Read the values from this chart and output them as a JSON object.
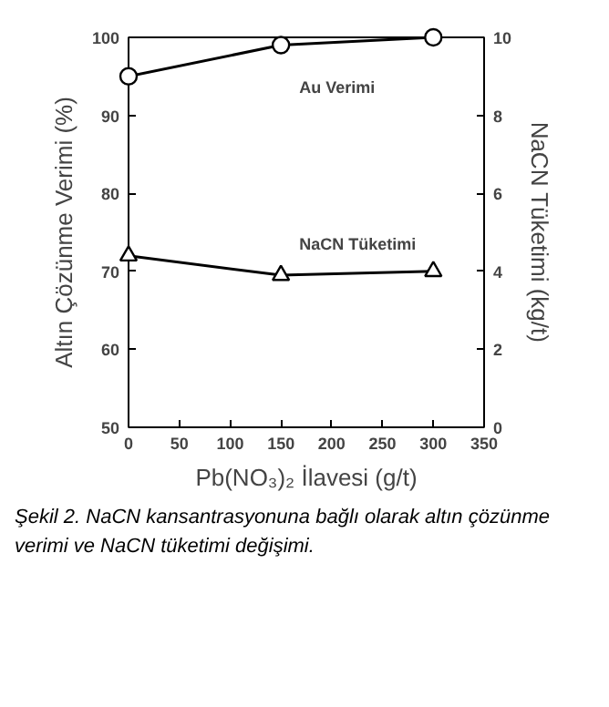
{
  "chart_data": {
    "type": "line",
    "xlabel": "Pb(NO₃)₂ İlavesi (g/t)",
    "ylabel": "Altın Çözünme Verimi (%)",
    "y2label": "NaCN Tüketimi (kg/t)",
    "x": [
      0,
      150,
      300
    ],
    "series": [
      {
        "name": "Au Verimi",
        "color": "#000000",
        "marker": "circle",
        "values": [
          95,
          99,
          100
        ]
      },
      {
        "name": "NaCN Tüketimi",
        "color": "#000000",
        "marker": "triangle",
        "axis": "y2",
        "values": [
          4.4,
          3.9,
          4.0
        ]
      }
    ],
    "xlim": [
      0,
      350
    ],
    "xticks": [
      0,
      50,
      100,
      150,
      200,
      250,
      300,
      350
    ],
    "ylim": [
      50,
      100
    ],
    "yticks": [
      50,
      60,
      70,
      80,
      90,
      100
    ],
    "y2lim": [
      0,
      10
    ],
    "y2ticks": [
      0,
      2,
      4,
      6,
      8,
      10
    ],
    "grid": false,
    "annotations": [
      "Şekil 2. NaCN kansantrasyonuna bağlı olarak altın çözünme verimi ve NaCN tüketimi değişimi."
    ]
  }
}
